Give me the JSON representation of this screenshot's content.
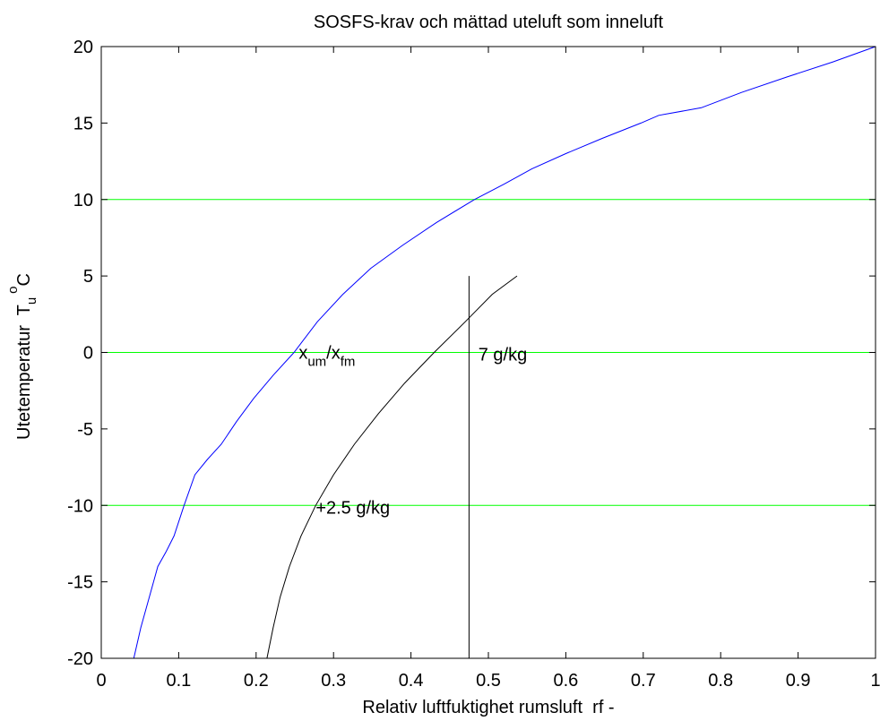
{
  "chart_data": {
    "type": "line",
    "title": "SOSFS-krav och mättad uteluft som inneluft",
    "xlabel": "Relativ luftfuktighet rumsluft  rf -",
    "ylabel": {
      "text": "Utetemperatur  T",
      "sub": "u",
      "sup": "o",
      "unit": "C"
    },
    "xlim": [
      0,
      1
    ],
    "ylim": [
      -20,
      20
    ],
    "xticks": [
      0,
      0.1,
      0.2,
      0.3,
      0.4,
      0.5,
      0.6,
      0.7,
      0.8,
      0.9,
      1
    ],
    "xtick_labels": [
      "0",
      "0.1",
      "0.2",
      "0.3",
      "0.4",
      "0.5",
      "0.6",
      "0.7",
      "0.8",
      "0.9",
      "1"
    ],
    "yticks": [
      -20,
      -15,
      -10,
      -5,
      0,
      5,
      10,
      15,
      20
    ],
    "ytick_labels": [
      "-20",
      "-15",
      "-10",
      "-5",
      "0",
      "5",
      "10",
      "15",
      "20"
    ],
    "grid": false,
    "reference_lines": [
      {
        "y": 10,
        "color": "#00ff00"
      },
      {
        "y": 0,
        "color": "#00ff00"
      },
      {
        "y": -10,
        "color": "#00ff00"
      }
    ],
    "vertical_line": {
      "x": 0.475,
      "y_range": [
        -20,
        5
      ],
      "color": "#000000"
    },
    "series": [
      {
        "color": "#0000ff",
        "x": [
          0.042,
          0.051,
          0.062,
          0.073,
          0.084,
          0.094,
          0.107,
          0.121,
          0.137,
          0.155,
          0.175,
          0.197,
          0.222,
          0.249,
          0.279,
          0.312,
          0.348,
          0.389,
          0.433,
          0.482,
          0.52,
          0.556,
          0.6,
          0.647,
          0.697,
          0.72,
          0.775,
          0.827,
          0.885,
          0.945,
          1.0
        ],
        "y": [
          -20,
          -18,
          -16,
          -14,
          -13,
          -12,
          -10,
          -8,
          -7,
          -6,
          -4.5,
          -3,
          -1.5,
          0,
          2,
          3.8,
          5.5,
          7,
          8.5,
          10,
          11,
          12,
          13,
          14,
          15,
          15.5,
          16,
          17,
          18,
          19,
          20
        ]
      },
      {
        "color": "#000000",
        "x": [
          0.214,
          0.222,
          0.231,
          0.243,
          0.258,
          0.277,
          0.3,
          0.327,
          0.358,
          0.392,
          0.43,
          0.47,
          0.505,
          0.537
        ],
        "y": [
          -20,
          -18,
          -16,
          -14,
          -12,
          -10,
          -8,
          -6,
          -4,
          -2,
          0,
          2,
          3.8,
          5
        ]
      }
    ],
    "annotations": {
      "ratio": {
        "base1": "x",
        "sub1": "um",
        "slash": "/x",
        "sub2": "fm",
        "x": 0.255,
        "y": 0
      },
      "seven": {
        "text": "7 g/kg",
        "x": 0.48,
        "y": 0
      },
      "plus": {
        "text": "+2.5 g/kg",
        "x": 0.277,
        "y": -10
      }
    }
  }
}
